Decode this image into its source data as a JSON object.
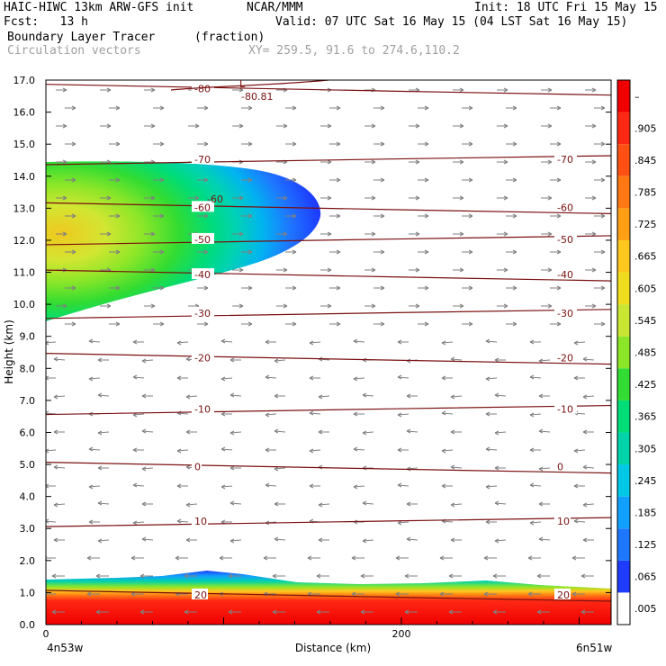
{
  "header": {
    "title": "HAIC-HIWC 13km ARW-GFS init",
    "org": "NCAR/MMM",
    "init": "Init: 18 UTC Fri 15 May 15",
    "fcst": "Fcst:   13 h",
    "valid": "Valid: 07 UTC Sat 16 May 15 (04 LST Sat 16 May 15)",
    "field": "Boundary Layer Tracer",
    "units": "(fraction)",
    "vectors": "Circulation vectors",
    "xy": "XY= 259.5, 91.6 to 274.6,110.2"
  },
  "colors": {
    "contour": "#7a1010",
    "vector": "#808080",
    "colorbar": [
      "#ffffff",
      "#1e3cff",
      "#1e78ff",
      "#12a0ff",
      "#00c8e6",
      "#00d2aa",
      "#00dc78",
      "#32dc32",
      "#8ce628",
      "#c8e632",
      "#f0dc1e",
      "#ffc81e",
      "#ffa014",
      "#ff7814",
      "#ff5014",
      "#ff2814",
      "#f00000"
    ]
  },
  "chart_data": {
    "type": "contour",
    "field": "Boundary Layer Tracer",
    "units": "fraction",
    "ylabel": "Height (km)",
    "xlabel": "Distance (km)",
    "x_left_label": "4n53w",
    "x_right_label": "6n51w",
    "ylim": [
      0,
      17
    ],
    "xlim": [
      0,
      318
    ],
    "yticks": [
      "0.0",
      "1.0",
      "2.0",
      "3.0",
      "4.0",
      "5.0",
      "6.0",
      "7.0",
      "8.0",
      "9.0",
      "10.0",
      "11.0",
      "12.0",
      "13.0",
      "14.0",
      "15.0",
      "16.0",
      "17.0"
    ],
    "xticks": [
      "0",
      "200"
    ],
    "colorbar_labels": [
      ".005",
      ".065",
      ".125",
      ".185",
      ".245",
      ".305",
      ".365",
      ".425",
      ".485",
      ".545",
      ".605",
      ".665",
      ".725",
      ".785",
      ".845",
      ".905",
      "–"
    ],
    "temperature_contours": [
      {
        "value": -80,
        "height_km": 16.7
      },
      {
        "value": -70,
        "height_km": 14.5
      },
      {
        "value": -60,
        "height_km": 13.0
      },
      {
        "value": -50,
        "height_km": 12.0
      },
      {
        "value": -40,
        "height_km": 10.9
      },
      {
        "value": -30,
        "height_km": 9.7
      },
      {
        "value": -20,
        "height_km": 8.3
      },
      {
        "value": -10,
        "height_km": 6.7
      },
      {
        "value": 0,
        "height_km": 4.9
      },
      {
        "value": 10,
        "height_km": 3.2
      },
      {
        "value": 20,
        "height_km": 0.9
      }
    ],
    "contour_labels": [
      "-80",
      "-70",
      "-60",
      "-50",
      "-40",
      "-30",
      "-20",
      "-10",
      "0",
      "10",
      "20"
    ],
    "low_marker": "L",
    "low_value": "-80.81",
    "plume_annotation": "-60"
  }
}
